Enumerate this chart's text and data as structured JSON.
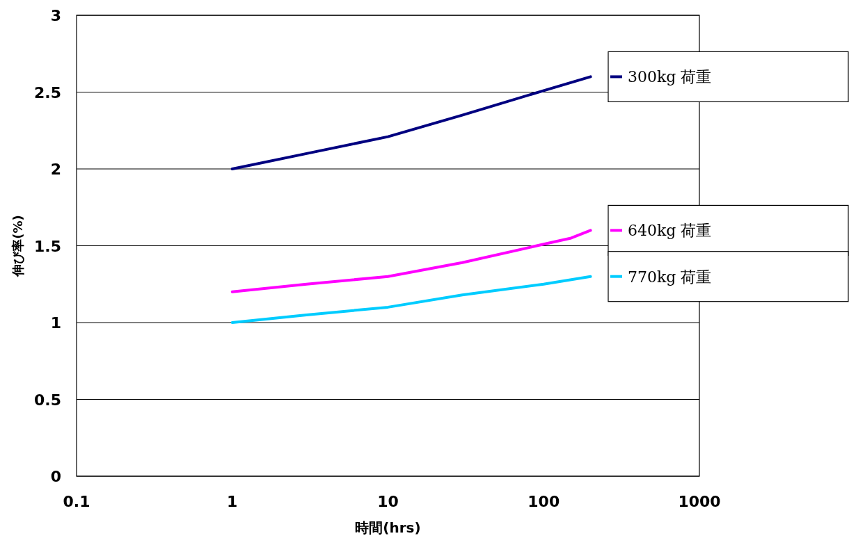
{
  "chart_data": {
    "type": "line",
    "xlabel": "時間(hrs)",
    "ylabel": "伸び率(%)",
    "log": "x",
    "xlim": [
      0.1,
      1000
    ],
    "xticks": [
      0.1,
      1,
      10,
      100,
      1000
    ],
    "ylim": [
      0,
      3
    ],
    "yticks": [
      0,
      0.5,
      1,
      1.5,
      2,
      2.5,
      3
    ],
    "grid": "y",
    "legend": "right",
    "marker": "none",
    "line_style": "solid",
    "series": [
      {
        "name": "300kg 荷重",
        "color": "#000080",
        "x": [
          1,
          3,
          10,
          30,
          100,
          200
        ],
        "values": [
          2.0,
          2.1,
          2.21,
          2.35,
          2.51,
          2.6
        ]
      },
      {
        "name": "640kg 荷重",
        "color": "#ff00ff",
        "x": [
          1,
          3,
          10,
          30,
          100,
          150,
          200
        ],
        "values": [
          1.2,
          1.25,
          1.3,
          1.39,
          1.51,
          1.55,
          1.6
        ]
      },
      {
        "name": "770kg 荷重",
        "color": "#00ccff",
        "x": [
          1,
          3,
          10,
          30,
          100,
          200
        ],
        "values": [
          1.0,
          1.05,
          1.1,
          1.18,
          1.25,
          1.3
        ]
      }
    ]
  }
}
